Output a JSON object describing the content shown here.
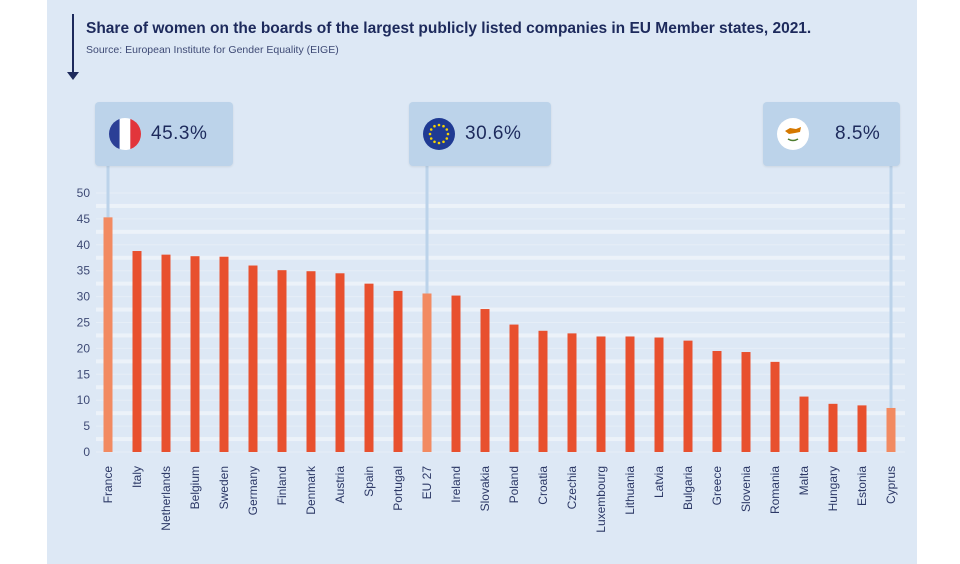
{
  "title": "Share of women on the boards of the largest publicly listed companies in EU Member states, 2021.",
  "source": "Source: European Institute for Gender Equality (EIGE)",
  "callouts": {
    "france": {
      "label": "45.3%",
      "flag": "france-flag-icon"
    },
    "eu": {
      "label": "30.6%",
      "flag": "eu-flag-icon"
    },
    "cyprus": {
      "label": "8.5%",
      "flag": "cyprus-flag-icon"
    }
  },
  "colors": {
    "bar": "#e8502e",
    "bar_highlight": "#f28a61",
    "background": "#dde8f5",
    "callout": "#bcd3ea",
    "text": "#1d2a5c"
  },
  "chart_data": {
    "type": "bar",
    "title": "Share of women on the boards of the largest publicly listed companies in EU Member states, 2021.",
    "subtitle": "Source: European Institute for Gender Equality (EIGE)",
    "xlabel": "",
    "ylabel": "",
    "ylim": [
      0,
      50
    ],
    "yticks": [
      0,
      5,
      10,
      15,
      20,
      25,
      30,
      35,
      40,
      45,
      50
    ],
    "grid": true,
    "legend": "none",
    "categories": [
      "France",
      "Italy",
      "Netherlands",
      "Belgium",
      "Sweden",
      "Germany",
      "Finland",
      "Denmark",
      "Austria",
      "Spain",
      "Portugal",
      "EU 27",
      "Ireland",
      "Slovakia",
      "Poland",
      "Croatia",
      "Czechia",
      "Luxembourg",
      "Lithuania",
      "Latvia",
      "Bulgaria",
      "Greece",
      "Slovenia",
      "Romania",
      "Malta",
      "Hungary",
      "Estonia",
      "Cyprus"
    ],
    "values": [
      45.3,
      38.8,
      38.1,
      37.8,
      37.7,
      36.0,
      35.1,
      34.9,
      34.5,
      32.5,
      31.1,
      30.6,
      30.2,
      27.6,
      24.6,
      23.4,
      22.9,
      22.3,
      22.3,
      22.1,
      21.5,
      19.5,
      19.3,
      17.4,
      10.7,
      9.3,
      9.0,
      8.5
    ],
    "highlighted": [
      "France",
      "EU 27",
      "Cyprus"
    ]
  }
}
